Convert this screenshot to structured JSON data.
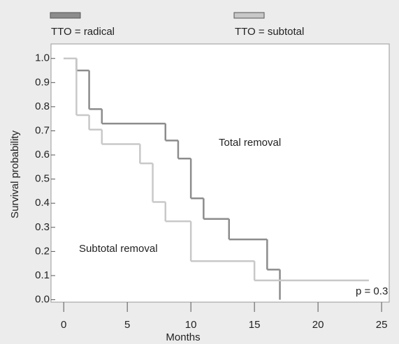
{
  "chart_data": {
    "type": "step",
    "x_label": "Months",
    "y_label": "Survival probability",
    "series": [
      {
        "name": "TTO = radical",
        "color": "#8c8c8c",
        "x": [
          0,
          1,
          2,
          3,
          8,
          9,
          10,
          11,
          13,
          16,
          17
        ],
        "values": [
          1.0,
          0.95,
          0.79,
          0.73,
          0.66,
          0.585,
          0.42,
          0.335,
          0.25,
          0.125,
          0
        ]
      },
      {
        "name": "TTO = subtotal",
        "color": "#c8c8c8",
        "x": [
          0,
          1,
          2,
          3,
          6,
          7,
          8,
          10,
          15,
          24
        ],
        "values": [
          1.0,
          0.765,
          0.705,
          0.645,
          0.565,
          0.405,
          0.325,
          0.16,
          0.08,
          0.08
        ]
      }
    ],
    "annotations": [
      "Total removal",
      "Subtotal removal",
      "p = 0.3"
    ],
    "xlim": [
      -1,
      25.6
    ],
    "ylim": [
      -0.01,
      1.06
    ],
    "xticks": [
      0,
      5,
      10,
      15,
      20,
      25
    ],
    "yticks": [
      {
        "value": 0,
        "label": "0.0"
      },
      0.1,
      0.2,
      0.3,
      0.4,
      0.5,
      0.6,
      0.7,
      0.8,
      0.9,
      {
        "value": 1,
        "label": "1.0"
      }
    ]
  }
}
